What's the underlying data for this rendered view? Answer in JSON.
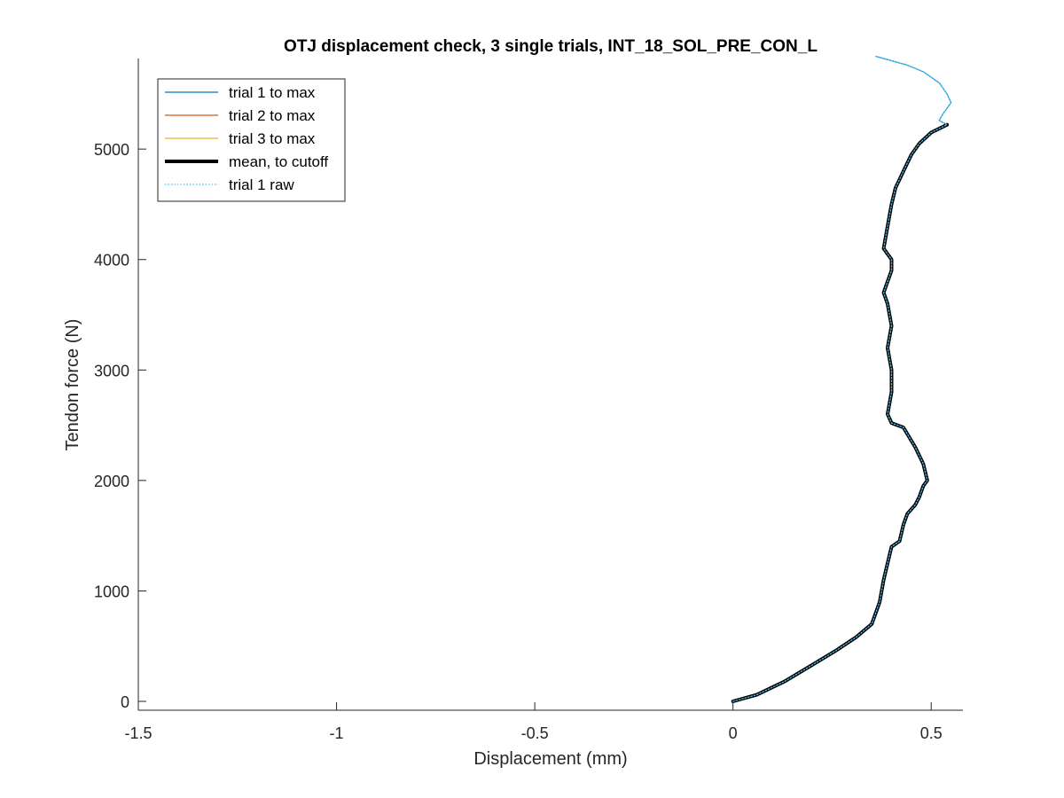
{
  "chart_data": {
    "type": "line",
    "title": "OTJ displacement check, 3 single trials, INT_18_SOL_PRE_CON_L",
    "xlabel": "Displacement (mm)",
    "ylabel": "Tendon force (N)",
    "xlim": [
      -1.5,
      0.58
    ],
    "ylim": [
      -80,
      5820
    ],
    "xticks": [
      -1.5,
      -1,
      -0.5,
      0,
      0.5
    ],
    "xtick_labels": [
      "-1.5",
      "-1",
      "-0.5",
      "0",
      "0.5"
    ],
    "yticks": [
      0,
      1000,
      2000,
      3000,
      4000,
      5000
    ],
    "ytick_labels": [
      "0",
      "1000",
      "2000",
      "3000",
      "4000",
      "5000"
    ],
    "grid": false,
    "legend_position": "top-left",
    "colors": {
      "trial1": "#0072BD",
      "trial2": "#D95319",
      "trial3": "#EDB120",
      "mean": "#000000",
      "raw": "#4DBEEE"
    },
    "series": [
      {
        "name": "trial 1 to max",
        "style": "solid-thin",
        "x": [
          0,
          0.06,
          0.13,
          0.2,
          0.26,
          0.31,
          0.35,
          0.37,
          0.38,
          0.39,
          0.4,
          0.42,
          0.43,
          0.44,
          0.46,
          0.47,
          0.48,
          0.49,
          0.48,
          0.46,
          0.43,
          0.4,
          0.39,
          0.4,
          0.4,
          0.39,
          0.4,
          0.39,
          0.38,
          0.39,
          0.4,
          0.4,
          0.38,
          0.39,
          0.4,
          0.41,
          0.43,
          0.45,
          0.47,
          0.5,
          0.54,
          0.52,
          0.53,
          0.55,
          0.54,
          0.52,
          0.48,
          0.44,
          0.4,
          0.36
        ],
        "y": [
          0,
          60,
          180,
          330,
          460,
          580,
          700,
          900,
          1100,
          1250,
          1400,
          1450,
          1600,
          1700,
          1780,
          1850,
          1950,
          2000,
          2150,
          2300,
          2480,
          2520,
          2600,
          2800,
          3000,
          3200,
          3400,
          3600,
          3700,
          3800,
          3900,
          4000,
          4100,
          4300,
          4500,
          4650,
          4800,
          4950,
          5050,
          5150,
          5220,
          5260,
          5320,
          5420,
          5500,
          5600,
          5700,
          5760,
          5800,
          5840
        ]
      },
      {
        "name": "trial 2 to max",
        "style": "solid-thin",
        "x": [],
        "y": []
      },
      {
        "name": "trial 3 to max",
        "style": "solid-thin",
        "x": [],
        "y": []
      },
      {
        "name": "mean, to cutoff",
        "style": "solid-thick",
        "x": [
          0,
          0.06,
          0.13,
          0.2,
          0.26,
          0.31,
          0.35,
          0.37,
          0.38,
          0.39,
          0.4,
          0.42,
          0.43,
          0.44,
          0.46,
          0.47,
          0.48,
          0.49,
          0.48,
          0.46,
          0.43,
          0.4,
          0.39,
          0.4,
          0.4,
          0.39,
          0.4,
          0.39,
          0.38,
          0.39,
          0.4,
          0.4,
          0.38,
          0.39,
          0.4,
          0.41,
          0.43,
          0.45,
          0.47,
          0.5,
          0.54
        ],
        "y": [
          0,
          60,
          180,
          330,
          460,
          580,
          700,
          900,
          1100,
          1250,
          1400,
          1450,
          1600,
          1700,
          1780,
          1850,
          1950,
          2000,
          2150,
          2300,
          2480,
          2520,
          2600,
          2800,
          3000,
          3200,
          3400,
          3600,
          3700,
          3800,
          3900,
          4000,
          4100,
          4300,
          4500,
          4650,
          4800,
          4950,
          5050,
          5150,
          5220
        ]
      },
      {
        "name": "trial 1 raw",
        "style": "dotted",
        "x": [
          0,
          0.06,
          0.13,
          0.2,
          0.26,
          0.31,
          0.35,
          0.37,
          0.38,
          0.39,
          0.4,
          0.42,
          0.43,
          0.44,
          0.46,
          0.47,
          0.48,
          0.49,
          0.48,
          0.46,
          0.43,
          0.4,
          0.39,
          0.4,
          0.4,
          0.39,
          0.4,
          0.39,
          0.38,
          0.39,
          0.4,
          0.4,
          0.38,
          0.39,
          0.4,
          0.41,
          0.43,
          0.45,
          0.47,
          0.5,
          0.54,
          0.52,
          0.53,
          0.55,
          0.54,
          0.52,
          0.48,
          0.44,
          0.4,
          0.36
        ],
        "y": [
          0,
          60,
          180,
          330,
          460,
          580,
          700,
          900,
          1100,
          1250,
          1400,
          1450,
          1600,
          1700,
          1780,
          1850,
          1950,
          2000,
          2150,
          2300,
          2480,
          2520,
          2600,
          2800,
          3000,
          3200,
          3400,
          3600,
          3700,
          3800,
          3900,
          4000,
          4100,
          4300,
          4500,
          4650,
          4800,
          4950,
          5050,
          5150,
          5220,
          5260,
          5320,
          5420,
          5500,
          5600,
          5700,
          5760,
          5800,
          5840
        ]
      }
    ]
  }
}
